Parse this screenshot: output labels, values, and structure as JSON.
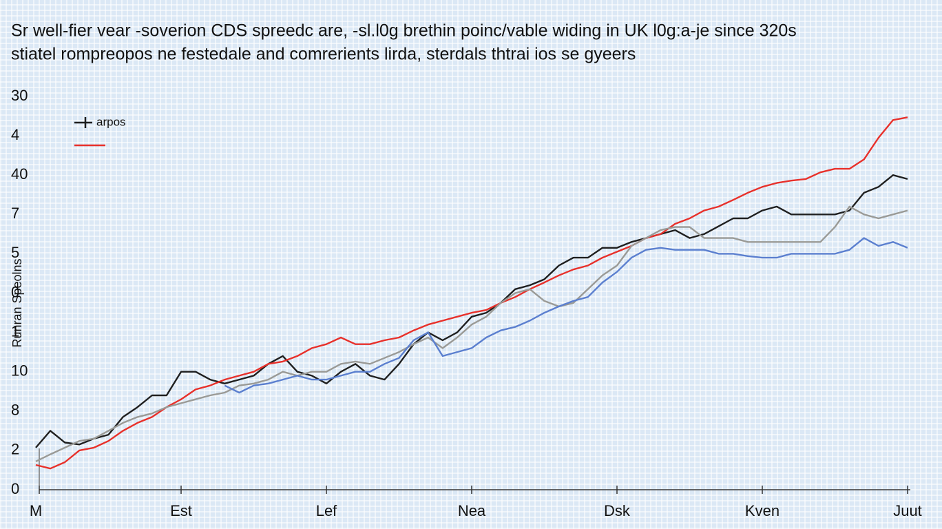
{
  "chart_data": {
    "type": "line",
    "title": "Sr well-fier vear -soverion CDS spreedc are, -sl.l0g brethin poinc/vable widing in UK l0g:a-je since 320s",
    "subtitle": "stiatel rompreopos ne festedale and comrerients lirda, sterdals thtrai ios se gyeers",
    "y_label": "Runran Speolns",
    "x": [
      0,
      1,
      2,
      3,
      4,
      5,
      6,
      7,
      8,
      9,
      10,
      11,
      12,
      13,
      14,
      15,
      16,
      17,
      18,
      19,
      20,
      21,
      22,
      23,
      24,
      25,
      26,
      27,
      28,
      29,
      30,
      31,
      32,
      33,
      34,
      35,
      36,
      37,
      38,
      39,
      40,
      41,
      42,
      43,
      44,
      45,
      46,
      47,
      48,
      49,
      50,
      51,
      52,
      53,
      54,
      55,
      56,
      57,
      58,
      59,
      60
    ],
    "xlim": [
      0,
      60
    ],
    "xticks": [
      {
        "value": 0,
        "label": "M"
      },
      {
        "value": 10,
        "label": "Est"
      },
      {
        "value": 20,
        "label": "Lef"
      },
      {
        "value": 30,
        "label": "Nea"
      },
      {
        "value": 40,
        "label": "Dsk"
      },
      {
        "value": 50,
        "label": "Kven"
      },
      {
        "value": 60,
        "label": "Juut"
      }
    ],
    "ylim": [
      0,
      100
    ],
    "yticks": [
      0,
      {
        "value": 10,
        "label": "2"
      },
      {
        "value": 20,
        "label": "8"
      },
      {
        "value": 30,
        "label": "10"
      },
      {
        "value": 40,
        "label": "1"
      },
      {
        "value": 50,
        "label": "0"
      },
      {
        "value": 60,
        "label": "5"
      },
      {
        "value": 70,
        "label": "7"
      },
      {
        "value": 80,
        "label": "40"
      },
      {
        "value": 90,
        "label": "4"
      },
      {
        "value": 100,
        "label": "30"
      }
    ],
    "legend": "upper left",
    "series": [
      {
        "name": "arpos",
        "color": "#1f1f1f",
        "values": [
          10.7,
          15,
          12,
          11.5,
          13,
          14,
          18.5,
          21,
          24,
          24,
          30,
          30,
          28,
          27,
          28,
          29,
          32,
          34,
          30,
          29,
          27,
          30,
          32,
          29,
          28,
          32,
          37,
          40,
          38,
          40,
          44,
          45,
          47.5,
          51,
          52,
          53.5,
          57,
          59,
          59,
          61.5,
          61.5,
          63,
          64,
          65,
          66,
          64,
          65,
          67,
          69,
          69,
          71,
          72,
          70,
          70,
          70,
          70,
          71,
          75.5,
          77,
          80,
          79
        ]
      },
      {
        "color": "#e8302a",
        "values": [
          6.3,
          5.4,
          7,
          10,
          10.7,
          12.4,
          15,
          17,
          18.5,
          21,
          23,
          25.5,
          26.5,
          28,
          29,
          30,
          32,
          32.6,
          34,
          36,
          37,
          38.7,
          37,
          37,
          38,
          38.7,
          40.5,
          42,
          43,
          44,
          45,
          45.7,
          47.5,
          49,
          51,
          52.7,
          54.5,
          56,
          57,
          59,
          60.5,
          62,
          64,
          65,
          67.6,
          69,
          71,
          72,
          73.7,
          75.5,
          77,
          78,
          78.6,
          79,
          80.7,
          81.6,
          81.6,
          84,
          89.5,
          94,
          94.7
        ]
      },
      {
        "color": "#9a9a96",
        "values": [
          7.2,
          9,
          10.7,
          12.4,
          13,
          15,
          17,
          18.5,
          19.4,
          21,
          22,
          23,
          24,
          24.7,
          26.5,
          27,
          28,
          30,
          29,
          30,
          30,
          32,
          32.6,
          32,
          33.5,
          35,
          37,
          38.7,
          36,
          38.7,
          42,
          44,
          47.5,
          50,
          51,
          48,
          46.6,
          47.5,
          51,
          54.5,
          57,
          62,
          64,
          66,
          66.8,
          66.8,
          64,
          64,
          64,
          63,
          63,
          63,
          63,
          63,
          63,
          66.8,
          72,
          70,
          69,
          70,
          71
        ]
      },
      {
        "color": "#5b7fcf",
        "values": [
          null,
          null,
          null,
          null,
          null,
          null,
          null,
          null,
          null,
          null,
          null,
          null,
          null,
          26.5,
          24.7,
          26.5,
          27,
          28,
          29,
          28,
          28,
          29,
          30,
          30,
          32,
          33.5,
          38,
          40,
          34,
          35,
          36,
          38.7,
          40.5,
          41.4,
          43,
          45,
          46.6,
          48,
          49,
          52.7,
          55.4,
          59,
          61,
          61.5,
          61,
          61,
          61,
          60,
          60,
          59.4,
          59,
          59,
          60,
          60,
          60,
          60,
          61,
          64,
          62,
          63,
          61.5
        ]
      }
    ]
  }
}
